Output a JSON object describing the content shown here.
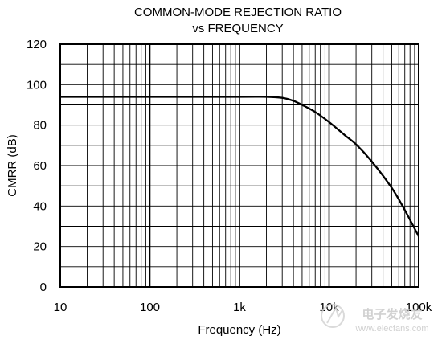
{
  "chart_data": {
    "type": "line",
    "title": "COMMON-MODE REJECTION RATIO",
    "subtitle": "vs FREQUENCY",
    "xlabel": "Frequency (Hz)",
    "ylabel": "CMRR (dB)",
    "xscale": "log",
    "xlim": [
      10,
      100000
    ],
    "ylim": [
      0,
      120
    ],
    "grid": true,
    "x_ticks": [
      {
        "value": 10,
        "label": "10"
      },
      {
        "value": 100,
        "label": "100"
      },
      {
        "value": 1000,
        "label": "1k"
      },
      {
        "value": 10000,
        "label": "10k"
      },
      {
        "value": 100000,
        "label": "100k"
      }
    ],
    "y_ticks": [
      {
        "value": 0,
        "label": "0"
      },
      {
        "value": 20,
        "label": "20"
      },
      {
        "value": 40,
        "label": "40"
      },
      {
        "value": 60,
        "label": "60"
      },
      {
        "value": 80,
        "label": "80"
      },
      {
        "value": 100,
        "label": "100"
      },
      {
        "value": 120,
        "label": "120"
      }
    ],
    "series": [
      {
        "x": [
          10,
          100,
          1000,
          2000,
          3000,
          4000,
          5000,
          7000,
          10000,
          15000,
          20000,
          30000,
          50000,
          70000,
          100000
        ],
        "y": [
          94,
          94,
          94,
          94,
          93.5,
          92,
          90,
          86.5,
          81.5,
          75,
          70.5,
          62,
          49,
          38,
          25
        ]
      }
    ]
  },
  "watermark": {
    "brand_cn": "电子发烧友",
    "url": "www.elecfans.com"
  }
}
